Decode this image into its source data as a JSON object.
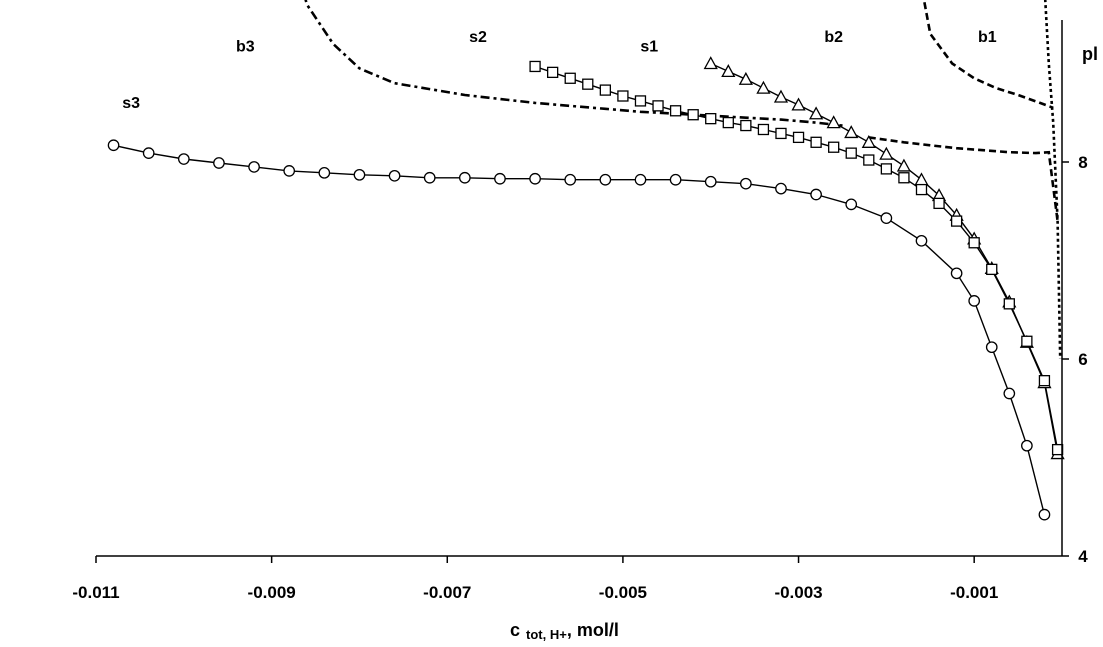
{
  "chart_data": {
    "type": "scatter",
    "xlabel_main": "c",
    "xlabel_sub": "tot, H+",
    "xlabel_tail": ", mol/l",
    "ylabel": "pl",
    "xlim": [
      -0.011,
      0.0
    ],
    "ylim": [
      4,
      10
    ],
    "x_ticks": [
      -0.011,
      -0.009,
      -0.007,
      -0.005,
      -0.003,
      -0.001
    ],
    "x_tick_labels": [
      "-0.011",
      "-0.009",
      "-0.007",
      "-0.005",
      "-0.003",
      "-0.001"
    ],
    "y_ticks": [
      4,
      6,
      8
    ],
    "y_tick_labels": [
      "4",
      "6",
      "8"
    ],
    "axis_position": "right",
    "grid": false,
    "series": [
      {
        "name": "s1",
        "marker": "triangle",
        "x": [
          -0.004,
          -0.0038,
          -0.0036,
          -0.0034,
          -0.0032,
          -0.003,
          -0.0028,
          -0.0026,
          -0.0024,
          -0.0022,
          -0.002,
          -0.0018,
          -0.0016,
          -0.0014,
          -0.0012,
          -0.001,
          -0.0008,
          -0.0006,
          -0.0004,
          -0.0002,
          -5e-05
        ],
        "y": [
          9.0,
          8.92,
          8.84,
          8.75,
          8.66,
          8.58,
          8.49,
          8.4,
          8.3,
          8.2,
          8.08,
          7.96,
          7.82,
          7.66,
          7.46,
          7.22,
          6.92,
          6.58,
          6.17,
          5.76,
          5.04
        ]
      },
      {
        "name": "s2",
        "marker": "square",
        "x": [
          -0.006,
          -0.0058,
          -0.0056,
          -0.0054,
          -0.0052,
          -0.005,
          -0.0048,
          -0.0046,
          -0.0044,
          -0.0042,
          -0.004,
          -0.0038,
          -0.0036,
          -0.0034,
          -0.0032,
          -0.003,
          -0.0028,
          -0.0026,
          -0.0024,
          -0.0022,
          -0.002,
          -0.0018,
          -0.0016,
          -0.0014,
          -0.0012,
          -0.001,
          -0.0008,
          -0.0006,
          -0.0004,
          -0.0002,
          -5e-05
        ],
        "y": [
          8.97,
          8.91,
          8.85,
          8.79,
          8.73,
          8.67,
          8.62,
          8.57,
          8.52,
          8.48,
          8.44,
          8.4,
          8.37,
          8.33,
          8.29,
          8.25,
          8.2,
          8.15,
          8.09,
          8.02,
          7.93,
          7.84,
          7.72,
          7.58,
          7.4,
          7.18,
          6.91,
          6.56,
          6.18,
          5.78,
          5.08
        ]
      },
      {
        "name": "s3",
        "marker": "circle",
        "x": [
          -0.0108,
          -0.0104,
          -0.01,
          -0.0096,
          -0.0092,
          -0.0088,
          -0.0084,
          -0.008,
          -0.0076,
          -0.0072,
          -0.0068,
          -0.0064,
          -0.006,
          -0.0056,
          -0.0052,
          -0.0048,
          -0.0044,
          -0.004,
          -0.0036,
          -0.0032,
          -0.0028,
          -0.0024,
          -0.002,
          -0.0016,
          -0.0012,
          -0.001,
          -0.0008,
          -0.0006,
          -0.0004,
          -0.0002
        ],
        "y": [
          8.17,
          8.09,
          8.03,
          7.99,
          7.95,
          7.91,
          7.89,
          7.87,
          7.86,
          7.84,
          7.84,
          7.83,
          7.83,
          7.82,
          7.82,
          7.82,
          7.82,
          7.8,
          7.78,
          7.73,
          7.67,
          7.57,
          7.43,
          7.2,
          6.87,
          6.59,
          6.12,
          5.65,
          5.12,
          4.42
        ]
      }
    ],
    "boundary_curves": [
      {
        "name": "b1",
        "style": "dotted",
        "x": [
          -0.0003,
          -0.0002,
          -0.00015,
          -0.0001,
          -5e-05,
          -2e-05
        ],
        "y": [
          10.5,
          9.8,
          9.0,
          8.4,
          7.4,
          6.0
        ]
      },
      {
        "name": "b2",
        "style": "dashed",
        "x": [
          -0.00175,
          -0.0015,
          -0.00125,
          -0.001,
          -0.00075,
          -0.0005,
          -0.00025,
          -0.0001
        ],
        "y": [
          10.5,
          9.3,
          9.0,
          8.85,
          8.75,
          8.68,
          8.6,
          8.55
        ]
      },
      {
        "name": "b2-lower",
        "style": "dashed",
        "x": [
          -0.0022,
          -0.0018,
          -0.0015,
          -0.0012,
          -0.0009,
          -0.0006,
          -0.0003,
          -0.00015,
          -5e-05
        ],
        "y": [
          8.25,
          8.2,
          8.17,
          8.14,
          8.12,
          8.1,
          8.09,
          8.1,
          7.4
        ]
      },
      {
        "name": "b3",
        "style": "dash-dot",
        "x": [
          -0.00885,
          -0.0086,
          -0.0083,
          -0.008,
          -0.0076,
          -0.0072,
          -0.0068,
          -0.0064,
          -0.006,
          -0.0056,
          -0.0052,
          -0.0048,
          -0.0044,
          -0.004,
          -0.0036,
          -0.0032,
          -0.0028,
          -0.0025
        ],
        "y": [
          10.5,
          9.6,
          9.2,
          8.95,
          8.8,
          8.74,
          8.68,
          8.64,
          8.6,
          8.57,
          8.54,
          8.51,
          8.49,
          8.47,
          8.45,
          8.43,
          8.4,
          8.37
        ]
      }
    ],
    "labels": [
      {
        "text": "b1",
        "x": -0.00085,
        "y": 9.22
      },
      {
        "text": "b2",
        "x": -0.0026,
        "y": 9.22
      },
      {
        "text": "b3",
        "x": -0.0093,
        "y": 9.12
      },
      {
        "text": "s1",
        "x": -0.0047,
        "y": 9.12
      },
      {
        "text": "s2",
        "x": -0.00665,
        "y": 9.22
      },
      {
        "text": "s3",
        "x": -0.0106,
        "y": 8.55
      }
    ]
  }
}
